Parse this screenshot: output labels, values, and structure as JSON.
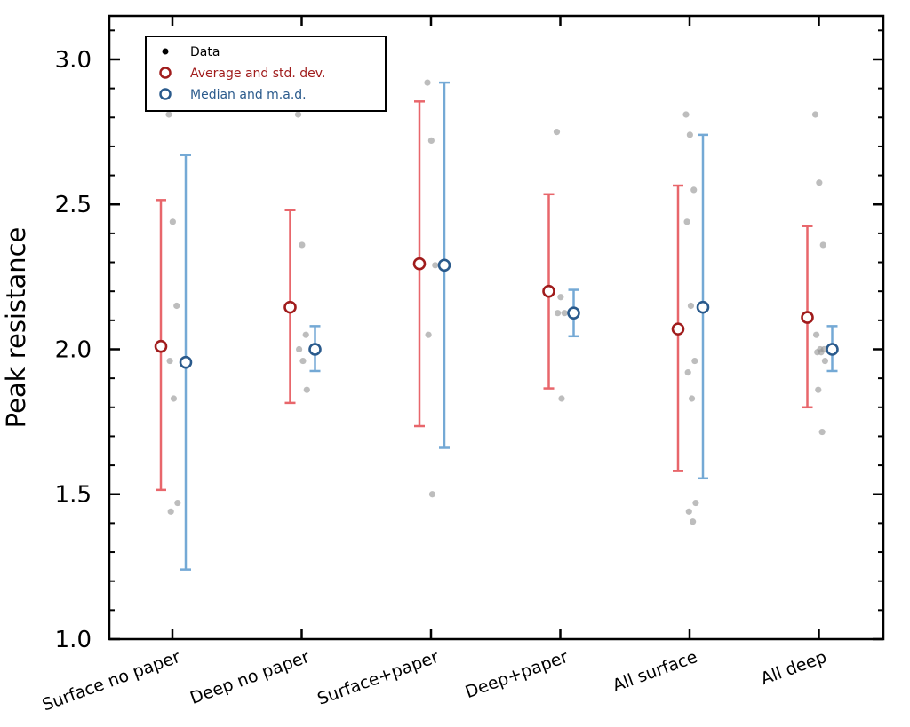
{
  "chart_data": {
    "type": "scatter",
    "title": "",
    "xlabel": "",
    "ylabel": "Peak resistance",
    "ylim": [
      1.0,
      3.15
    ],
    "yticks": [
      "1.0",
      "1.5",
      "2.0",
      "2.5",
      "3.0"
    ],
    "categories": [
      "Surface no paper",
      "Deep no paper",
      "Surface+paper",
      "Deep+paper",
      "All surface",
      "All deep"
    ],
    "legend": {
      "position": "top-left",
      "entries": [
        {
          "label": "Data",
          "color": "#000000",
          "marker": "dot"
        },
        {
          "label": "Average and std. dev.",
          "color": "#a01c1c",
          "marker": "ring"
        },
        {
          "label": "Median and m.a.d.",
          "color": "#2a5a8c",
          "marker": "ring"
        }
      ]
    },
    "colors": {
      "mean_bar": "#e8666b",
      "mean_marker": "#a01c1c",
      "median_bar": "#74a9d5",
      "median_marker": "#2a5a8c",
      "data": "#9a9a9a"
    },
    "series": [
      {
        "name": "Average and std. dev.",
        "values": [
          2.01,
          2.145,
          2.295,
          2.2,
          2.07,
          2.11
        ],
        "low": [
          1.515,
          1.815,
          1.735,
          1.865,
          1.58,
          1.8
        ],
        "high": [
          2.515,
          2.48,
          2.855,
          2.535,
          2.565,
          2.425
        ]
      },
      {
        "name": "Median and m.a.d.",
        "values": [
          1.955,
          2.0,
          2.29,
          2.125,
          2.145,
          2.0
        ],
        "low": [
          1.24,
          1.925,
          1.66,
          2.045,
          1.555,
          1.925
        ],
        "high": [
          2.67,
          2.08,
          2.92,
          2.205,
          2.74,
          2.08
        ]
      }
    ],
    "data_points": [
      {
        "category": "Surface no paper",
        "values": [
          2.81,
          2.44,
          2.15,
          1.96,
          1.83,
          1.47,
          1.44
        ]
      },
      {
        "category": "Deep no paper",
        "values": [
          2.81,
          2.36,
          2.05,
          2.0,
          1.96,
          1.86
        ]
      },
      {
        "category": "Surface+paper",
        "values": [
          2.92,
          2.72,
          2.29,
          2.05,
          1.5
        ]
      },
      {
        "category": "Deep+paper",
        "values": [
          2.75,
          2.18,
          2.125,
          2.125,
          1.83
        ]
      },
      {
        "category": "All surface",
        "values": [
          2.81,
          2.74,
          2.55,
          2.44,
          2.15,
          1.96,
          1.92,
          1.83,
          1.47,
          1.44,
          1.405
        ]
      },
      {
        "category": "All deep",
        "values": [
          2.81,
          2.575,
          2.36,
          2.05,
          2.0,
          2.0,
          1.99,
          1.99,
          1.96,
          1.86,
          1.715
        ]
      }
    ]
  }
}
